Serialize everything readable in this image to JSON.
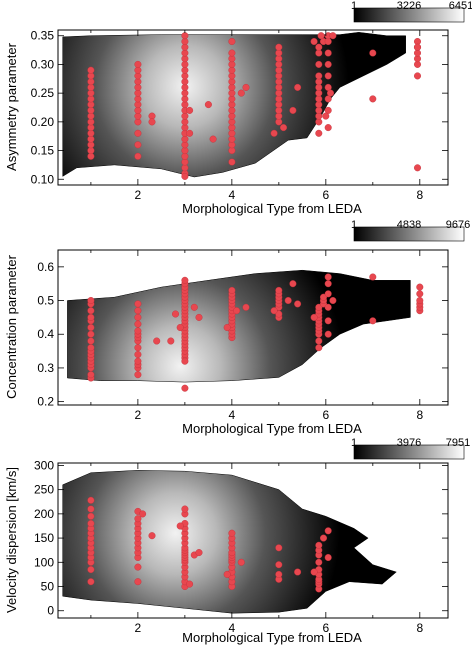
{
  "colors": {
    "point": "#e8474f",
    "point_stroke": "#c0303a",
    "background": "#ffffff",
    "frame": "#000000"
  },
  "chart_data": [
    {
      "type": "scatter",
      "overlay": "heatmap",
      "xlabel": "Morphological Type from LEDA",
      "ylabel": "Asymmetry parameter",
      "xlim": [
        0.3,
        8.6
      ],
      "ylim": [
        0.09,
        0.36
      ],
      "xticks": [
        2,
        4,
        6,
        8
      ],
      "yticks": [
        0.1,
        0.15,
        0.2,
        0.25,
        0.3,
        0.35
      ],
      "ytick_labels": [
        "0.10",
        "0.15",
        "0.20",
        "0.25",
        "0.30",
        "0.35"
      ],
      "colorbar": {
        "min_label": "1",
        "mid_label": "3226",
        "max_label": "6451"
      },
      "density": {
        "envelope": [
          [
            0.4,
            0.105
          ],
          [
            0.7,
            0.12
          ],
          [
            1.5,
            0.125
          ],
          [
            2.5,
            0.118
          ],
          [
            3.2,
            0.104
          ],
          [
            3.8,
            0.112
          ],
          [
            4.5,
            0.128
          ],
          [
            5.2,
            0.168
          ],
          [
            5.6,
            0.172
          ],
          [
            5.9,
            0.21
          ],
          [
            6.1,
            0.24
          ],
          [
            6.3,
            0.26
          ],
          [
            6.8,
            0.28
          ],
          [
            7.3,
            0.3
          ],
          [
            7.7,
            0.32
          ],
          [
            7.7,
            0.35
          ],
          [
            7.3,
            0.35
          ],
          [
            6.7,
            0.356
          ],
          [
            6.3,
            0.352
          ],
          [
            5.5,
            0.352
          ],
          [
            4.0,
            0.352
          ],
          [
            2.5,
            0.352
          ],
          [
            1.0,
            0.35
          ],
          [
            0.4,
            0.348
          ]
        ],
        "peak": [
          3.0,
          0.262
        ]
      },
      "series": [
        {
          "x": [
            1,
            1,
            1,
            1,
            1,
            1,
            1,
            1,
            1,
            1,
            1,
            1,
            1,
            1,
            1,
            1
          ],
          "y": [
            0.14,
            0.15,
            0.16,
            0.17,
            0.18,
            0.19,
            0.2,
            0.21,
            0.22,
            0.23,
            0.24,
            0.25,
            0.26,
            0.27,
            0.28,
            0.29
          ]
        },
        {
          "x": [
            2,
            2,
            2,
            2,
            2,
            2,
            2,
            2,
            2,
            2,
            2,
            2,
            2,
            2,
            2.3,
            2.3
          ],
          "y": [
            0.14,
            0.16,
            0.18,
            0.2,
            0.21,
            0.22,
            0.23,
            0.24,
            0.25,
            0.26,
            0.27,
            0.28,
            0.29,
            0.3,
            0.21,
            0.2
          ]
        },
        {
          "x": [
            3,
            3,
            3,
            3,
            3,
            3,
            3,
            3,
            3,
            3,
            3,
            3,
            3,
            3,
            3,
            3,
            3,
            3,
            3,
            3,
            3,
            3,
            3,
            3,
            3,
            3,
            3.1,
            3.1,
            3.5,
            3.6
          ],
          "y": [
            0.11,
            0.12,
            0.13,
            0.14,
            0.15,
            0.16,
            0.17,
            0.18,
            0.19,
            0.2,
            0.21,
            0.22,
            0.23,
            0.24,
            0.25,
            0.26,
            0.27,
            0.28,
            0.29,
            0.3,
            0.31,
            0.32,
            0.33,
            0.34,
            0.35,
            0.105,
            0.22,
            0.18,
            0.23,
            0.17
          ]
        },
        {
          "x": [
            4,
            4,
            4,
            4,
            4,
            4,
            4,
            4,
            4,
            4,
            4,
            4,
            4,
            4,
            4,
            4,
            4,
            4,
            4,
            4,
            4.2,
            4.3
          ],
          "y": [
            0.13,
            0.15,
            0.16,
            0.17,
            0.18,
            0.19,
            0.2,
            0.21,
            0.22,
            0.23,
            0.24,
            0.25,
            0.26,
            0.27,
            0.28,
            0.29,
            0.3,
            0.31,
            0.32,
            0.34,
            0.25,
            0.26
          ]
        },
        {
          "x": [
            5,
            5,
            5,
            5,
            5,
            5,
            5,
            5,
            5,
            5,
            5,
            5,
            5,
            5,
            5.1,
            5.3,
            4.9,
            5.4
          ],
          "y": [
            0.2,
            0.21,
            0.22,
            0.23,
            0.24,
            0.25,
            0.26,
            0.27,
            0.28,
            0.29,
            0.3,
            0.31,
            0.32,
            0.33,
            0.19,
            0.22,
            0.18,
            0.26
          ]
        },
        {
          "x": [
            5.85,
            5.85,
            5.85,
            5.85,
            5.85,
            5.85,
            5.85,
            5.85,
            5.85,
            5.85,
            5.85,
            5.85,
            5.85,
            5.95,
            6.05,
            6.05,
            6.05,
            6.05,
            6.05,
            6.05,
            6.05,
            6.05,
            6.05,
            5.75,
            6.15,
            5.9,
            6.0,
            6.1
          ],
          "y": [
            0.18,
            0.2,
            0.21,
            0.22,
            0.23,
            0.24,
            0.25,
            0.26,
            0.27,
            0.28,
            0.3,
            0.32,
            0.33,
            0.34,
            0.19,
            0.22,
            0.24,
            0.26,
            0.28,
            0.3,
            0.32,
            0.34,
            0.35,
            0.34,
            0.35,
            0.35,
            0.21,
            0.25
          ]
        },
        {
          "x": [
            7,
            7,
            7.95,
            7.95,
            7.95,
            7.95,
            7.95,
            7.95,
            7.95,
            7.95
          ],
          "y": [
            0.32,
            0.24,
            0.12,
            0.28,
            0.3,
            0.31,
            0.32,
            0.33,
            0.34,
            0.33
          ]
        }
      ]
    },
    {
      "type": "scatter",
      "overlay": "heatmap",
      "xlabel": "Morphological Type from LEDA",
      "ylabel": "Concentration parameter",
      "xlim": [
        0.3,
        8.6
      ],
      "ylim": [
        0.19,
        0.65
      ],
      "xticks": [
        2,
        4,
        6,
        8
      ],
      "yticks": [
        0.2,
        0.3,
        0.4,
        0.5,
        0.6
      ],
      "ytick_labels": [
        "0.2",
        "0.3",
        "0.4",
        "0.5",
        "0.6"
      ],
      "colorbar": {
        "min_label": "1",
        "mid_label": "4838",
        "max_label": "9676"
      },
      "density": {
        "envelope": [
          [
            0.5,
            0.27
          ],
          [
            1.2,
            0.262
          ],
          [
            2.0,
            0.262
          ],
          [
            3.0,
            0.258
          ],
          [
            4.0,
            0.262
          ],
          [
            5.0,
            0.272
          ],
          [
            5.5,
            0.31
          ],
          [
            5.9,
            0.36
          ],
          [
            6.3,
            0.4
          ],
          [
            6.8,
            0.43
          ],
          [
            7.3,
            0.44
          ],
          [
            7.8,
            0.45
          ],
          [
            7.8,
            0.56
          ],
          [
            7.0,
            0.56
          ],
          [
            6.3,
            0.58
          ],
          [
            5.5,
            0.59
          ],
          [
            4.5,
            0.58
          ],
          [
            3.5,
            0.56
          ],
          [
            2.5,
            0.54
          ],
          [
            1.5,
            0.51
          ],
          [
            0.5,
            0.5
          ]
        ],
        "peak": [
          2.9,
          0.305
        ]
      },
      "series": [
        {
          "x": [
            1,
            1,
            1,
            1,
            1,
            1,
            1,
            1,
            1,
            1,
            1,
            1,
            1,
            1,
            1,
            1,
            1
          ],
          "y": [
            0.27,
            0.28,
            0.3,
            0.31,
            0.32,
            0.33,
            0.34,
            0.35,
            0.36,
            0.38,
            0.4,
            0.42,
            0.44,
            0.45,
            0.47,
            0.49,
            0.5
          ]
        },
        {
          "x": [
            2,
            2,
            2,
            2,
            2,
            2,
            2,
            2,
            2,
            2,
            2,
            2,
            2,
            2,
            2.4
          ],
          "y": [
            0.28,
            0.3,
            0.31,
            0.32,
            0.34,
            0.36,
            0.38,
            0.39,
            0.4,
            0.41,
            0.43,
            0.45,
            0.47,
            0.49,
            0.38
          ]
        },
        {
          "x": [
            3,
            3,
            3,
            3,
            3,
            3,
            3,
            3,
            3,
            3,
            3,
            3,
            3,
            3,
            3,
            3,
            3,
            3,
            3,
            3,
            3,
            3,
            3,
            3,
            3,
            3,
            2.8,
            2.9,
            3.2,
            3.3,
            2.7
          ],
          "y": [
            0.33,
            0.34,
            0.35,
            0.36,
            0.37,
            0.38,
            0.39,
            0.4,
            0.41,
            0.42,
            0.43,
            0.44,
            0.45,
            0.46,
            0.47,
            0.48,
            0.49,
            0.5,
            0.51,
            0.52,
            0.53,
            0.54,
            0.55,
            0.24,
            0.32,
            0.56,
            0.46,
            0.42,
            0.48,
            0.45,
            0.38
          ]
        },
        {
          "x": [
            4,
            4,
            4,
            4,
            4,
            4,
            4,
            4,
            4,
            4,
            4,
            4,
            4,
            4,
            4,
            4.1,
            4.3,
            3.9
          ],
          "y": [
            0.39,
            0.4,
            0.41,
            0.42,
            0.43,
            0.44,
            0.45,
            0.46,
            0.47,
            0.48,
            0.49,
            0.5,
            0.51,
            0.52,
            0.53,
            0.47,
            0.48,
            0.42
          ]
        },
        {
          "x": [
            5,
            5,
            5,
            5,
            5,
            5,
            5,
            5,
            5.2,
            5.4,
            5.3,
            4.9
          ],
          "y": [
            0.45,
            0.46,
            0.48,
            0.49,
            0.5,
            0.51,
            0.52,
            0.53,
            0.5,
            0.49,
            0.55,
            0.47
          ]
        },
        {
          "x": [
            5.85,
            5.85,
            5.85,
            5.85,
            5.85,
            5.85,
            5.85,
            5.85,
            5.85,
            5.85,
            5.85,
            5.95,
            5.95,
            5.95,
            6.05,
            6.05,
            6.05,
            6.05,
            6.05,
            6.05,
            5.75,
            6.15
          ],
          "y": [
            0.36,
            0.38,
            0.4,
            0.41,
            0.42,
            0.43,
            0.44,
            0.45,
            0.46,
            0.47,
            0.48,
            0.49,
            0.5,
            0.51,
            0.4,
            0.44,
            0.48,
            0.52,
            0.55,
            0.57,
            0.45,
            0.5
          ]
        },
        {
          "x": [
            7,
            7,
            8,
            8,
            8,
            8,
            8,
            8
          ],
          "y": [
            0.57,
            0.44,
            0.47,
            0.48,
            0.49,
            0.5,
            0.52,
            0.54
          ]
        }
      ]
    },
    {
      "type": "scatter",
      "overlay": "heatmap",
      "xlabel": "Morphological Type from LEDA",
      "ylabel": "Velocity dispersion [km/s]",
      "xlim": [
        0.3,
        8.6
      ],
      "ylim": [
        -15,
        305
      ],
      "xticks": [
        2,
        4,
        6,
        8
      ],
      "yticks": [
        0,
        50,
        100,
        150,
        200,
        250,
        300
      ],
      "ytick_labels": [
        "0",
        "50",
        "100",
        "150",
        "200",
        "250",
        "300"
      ],
      "colorbar": {
        "min_label": "1",
        "mid_label": "3976",
        "max_label": "7951"
      },
      "density": {
        "envelope": [
          [
            0.4,
            30
          ],
          [
            1.0,
            22
          ],
          [
            2.0,
            15
          ],
          [
            3.0,
            5
          ],
          [
            4.0,
            -5
          ],
          [
            5.0,
            -3
          ],
          [
            5.6,
            5
          ],
          [
            6.0,
            40
          ],
          [
            6.5,
            60
          ],
          [
            7.2,
            55
          ],
          [
            7.5,
            80
          ],
          [
            7.0,
            95
          ],
          [
            6.6,
            130
          ],
          [
            6.9,
            150
          ],
          [
            6.6,
            170
          ],
          [
            6.0,
            195
          ],
          [
            5.5,
            210
          ],
          [
            5.0,
            250
          ],
          [
            4.0,
            280
          ],
          [
            3.0,
            288
          ],
          [
            2.0,
            290
          ],
          [
            1.0,
            285
          ],
          [
            0.4,
            260
          ]
        ],
        "peak": [
          2.8,
          160
        ]
      },
      "series": [
        {
          "x": [
            1,
            1,
            1,
            1,
            1,
            1,
            1,
            1,
            1,
            1,
            1,
            1,
            1,
            1
          ],
          "y": [
            60,
            85,
            100,
            110,
            120,
            130,
            140,
            150,
            160,
            170,
            180,
            195,
            210,
            228
          ]
        },
        {
          "x": [
            2,
            2,
            2,
            2,
            2,
            2,
            2,
            2,
            2,
            2,
            2,
            2,
            2.1
          ],
          "y": [
            60,
            90,
            110,
            120,
            130,
            140,
            150,
            160,
            170,
            180,
            190,
            205,
            200
          ]
        },
        {
          "x": [
            3,
            3,
            3,
            3,
            3,
            3,
            3,
            3,
            3,
            3,
            3,
            3,
            3,
            3,
            3,
            3,
            3,
            3,
            3,
            3.2,
            3.3,
            2.9,
            3.1,
            2.3
          ],
          "y": [
            50,
            60,
            70,
            80,
            90,
            100,
            105,
            110,
            115,
            120,
            125,
            130,
            140,
            150,
            160,
            170,
            180,
            200,
            210,
            115,
            120,
            175,
            55,
            155
          ]
        },
        {
          "x": [
            4,
            4,
            4,
            4,
            4,
            4,
            4,
            4,
            4,
            4,
            4,
            4,
            4,
            4,
            4.2,
            3.9
          ],
          "y": [
            50,
            60,
            70,
            80,
            90,
            100,
            105,
            110,
            115,
            120,
            130,
            140,
            150,
            160,
            100,
            75
          ]
        },
        {
          "x": [
            5,
            5,
            5,
            5,
            5.4
          ],
          "y": [
            65,
            75,
            95,
            130,
            80
          ]
        },
        {
          "x": [
            5.85,
            5.85,
            5.85,
            5.85,
            5.85,
            5.85,
            5.85,
            5.85,
            5.85,
            5.85,
            5.95,
            6.05,
            6.05,
            5.75
          ],
          "y": [
            45,
            55,
            60,
            65,
            75,
            85,
            100,
            115,
            125,
            135,
            150,
            165,
            110,
            80
          ]
        }
      ]
    }
  ]
}
